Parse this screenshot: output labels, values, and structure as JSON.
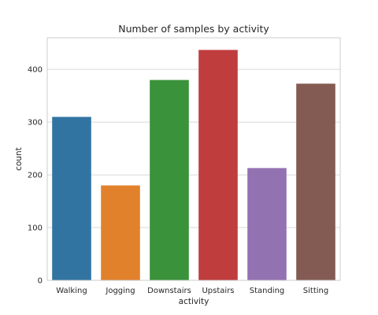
{
  "chart_data": {
    "type": "bar",
    "title": "Number of samples by activity",
    "xlabel": "activity",
    "ylabel": "count",
    "categories": [
      "Walking",
      "Jogging",
      "Downstairs",
      "Upstairs",
      "Standing",
      "Sitting"
    ],
    "values": [
      310,
      180,
      380,
      437,
      213,
      373
    ],
    "colors": [
      "#3274a1",
      "#e1812c",
      "#3a923a",
      "#c03d3e",
      "#9372b2",
      "#845b53"
    ],
    "ylim": [
      0,
      460
    ],
    "yticks": [
      0,
      100,
      200,
      300,
      400
    ],
    "grid": "horizontal",
    "legend": "none"
  }
}
